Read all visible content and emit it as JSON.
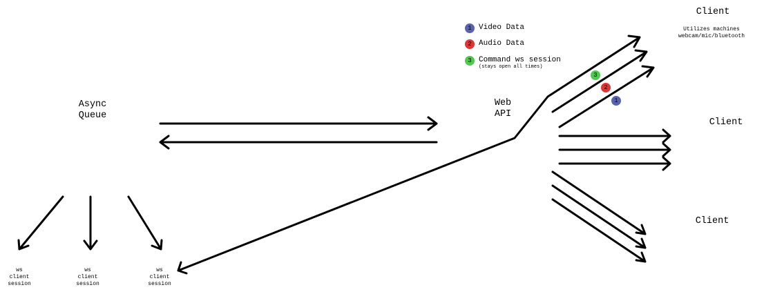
{
  "nodes": {
    "async_queue": "Async\nQueue",
    "web_api": "Web\nAPI",
    "client_top": "Client",
    "client_top_note": "Utilizes machines\nwebcam/mic/bluetooth",
    "client_middle": "Client",
    "client_bottom": "Client",
    "ws_sessions": [
      "ws\nclient\nsession",
      "ws\nclient\nsession",
      "ws\nclient\nsession"
    ]
  },
  "legend": [
    {
      "number": "1",
      "label": "Video Data",
      "sub": "",
      "color": "#5763b0"
    },
    {
      "number": "2",
      "label": "Audio Data",
      "sub": "",
      "color": "#e03535"
    },
    {
      "number": "3",
      "label": "Command ws session",
      "sub": "(stays open all times)",
      "color": "#4fc94f"
    }
  ],
  "stream_badges": [
    "3",
    "2",
    "1"
  ]
}
